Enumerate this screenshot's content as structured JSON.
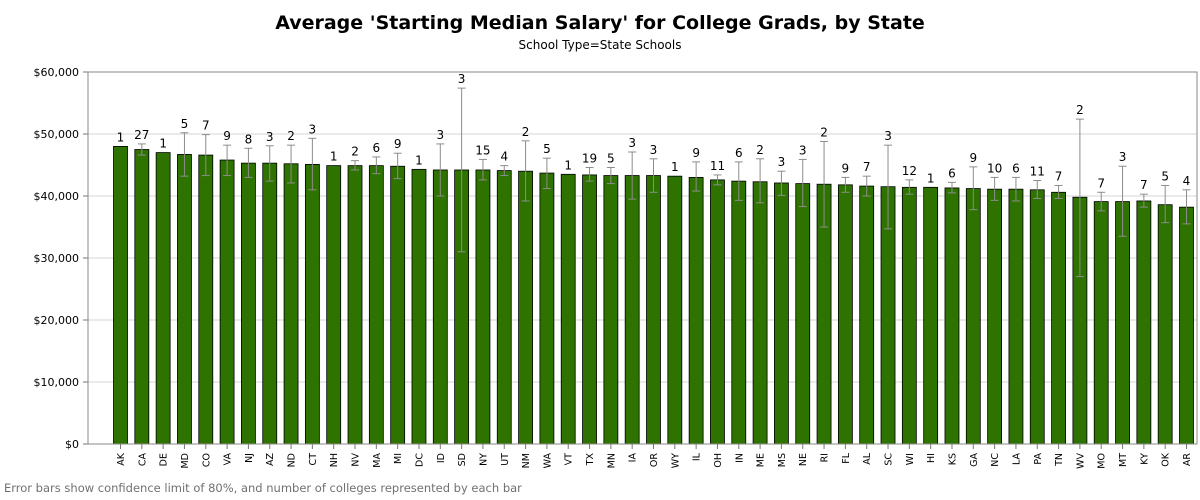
{
  "chart_data": {
    "type": "bar",
    "title": "Average 'Starting Median Salary' for College Grads, by State",
    "subtitle": "School Type=State Schools",
    "footnote": "Error bars show confidence limit of 80%, and number of colleges represented by each bar",
    "xlabel": "",
    "ylabel": "",
    "ylim": [
      0,
      60000
    ],
    "yticks": [
      0,
      10000,
      20000,
      30000,
      40000,
      50000,
      60000
    ],
    "ytick_labels": [
      "$0",
      "$10,000",
      "$20,000",
      "$30,000",
      "$40,000",
      "$50,000",
      "$60,000"
    ],
    "grid": true,
    "bar_color": "#2e7300",
    "categories": [
      "AK",
      "CA",
      "DE",
      "MD",
      "CO",
      "VA",
      "NJ",
      "AZ",
      "ND",
      "CT",
      "NH",
      "NV",
      "MA",
      "MI",
      "DC",
      "ID",
      "SD",
      "NY",
      "UT",
      "NM",
      "WA",
      "VT",
      "TX",
      "MN",
      "IA",
      "OR",
      "WY",
      "IL",
      "OH",
      "IN",
      "ME",
      "MS",
      "NE",
      "RI",
      "FL",
      "AL",
      "SC",
      "WI",
      "HI",
      "KS",
      "GA",
      "NC",
      "LA",
      "PA",
      "TN",
      "WV",
      "MO",
      "MT",
      "KY",
      "OK",
      "AR"
    ],
    "values": [
      48000,
      47500,
      47000,
      46700,
      46600,
      45800,
      45300,
      45300,
      45200,
      45100,
      44900,
      44900,
      44900,
      44800,
      44300,
      44200,
      44200,
      44200,
      44100,
      44000,
      43700,
      43500,
      43400,
      43300,
      43300,
      43300,
      43200,
      43000,
      42600,
      42400,
      42300,
      42100,
      42000,
      41900,
      41800,
      41600,
      41500,
      41400,
      41400,
      41300,
      41200,
      41100,
      41100,
      41000,
      40600,
      39800,
      39100,
      39100,
      39200,
      38600,
      38200
    ],
    "error_low": [
      null,
      46600,
      null,
      43200,
      43300,
      43300,
      43000,
      42400,
      42100,
      41000,
      null,
      44200,
      43600,
      42800,
      null,
      40000,
      31000,
      42600,
      43300,
      39200,
      41200,
      null,
      42400,
      42000,
      39500,
      40600,
      null,
      40800,
      41800,
      39300,
      38900,
      40100,
      38300,
      35000,
      40600,
      40000,
      34700,
      40300,
      null,
      40500,
      37800,
      39300,
      39200,
      39600,
      39600,
      27000,
      37600,
      33500,
      38200,
      35700,
      35500
    ],
    "error_high": [
      null,
      48400,
      null,
      50200,
      49900,
      48200,
      47700,
      48100,
      48200,
      49300,
      null,
      45700,
      46300,
      46900,
      null,
      48400,
      57400,
      45900,
      44900,
      48900,
      46100,
      null,
      44600,
      44600,
      47100,
      46000,
      null,
      45500,
      43400,
      45500,
      46000,
      44000,
      45900,
      48800,
      43000,
      43200,
      48200,
      42600,
      null,
      42200,
      44700,
      43000,
      43000,
      42500,
      41700,
      52400,
      40600,
      44800,
      40300,
      41700,
      41000
    ],
    "counts": [
      1,
      27,
      1,
      5,
      7,
      9,
      8,
      3,
      2,
      3,
      1,
      2,
      6,
      9,
      1,
      3,
      3,
      15,
      4,
      2,
      5,
      1,
      19,
      5,
      3,
      3,
      1,
      9,
      11,
      6,
      2,
      3,
      3,
      2,
      9,
      7,
      3,
      12,
      1,
      6,
      9,
      10,
      6,
      11,
      7,
      2,
      7,
      3,
      7,
      5,
      4
    ]
  }
}
